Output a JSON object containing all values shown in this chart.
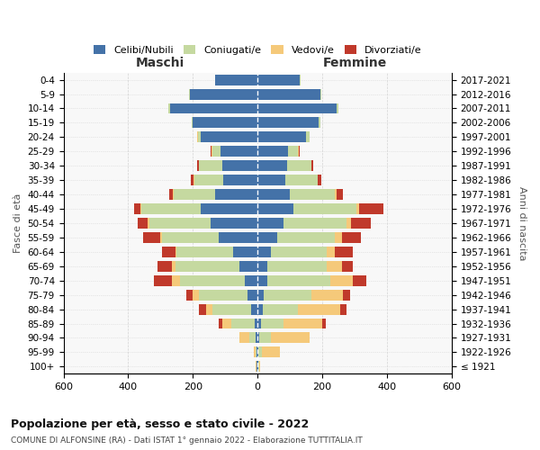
{
  "age_groups": [
    "100+",
    "95-99",
    "90-94",
    "85-89",
    "80-84",
    "75-79",
    "70-74",
    "65-69",
    "60-64",
    "55-59",
    "50-54",
    "45-49",
    "40-44",
    "35-39",
    "30-34",
    "25-29",
    "20-24",
    "15-19",
    "10-14",
    "5-9",
    "0-4"
  ],
  "birth_years": [
    "≤ 1921",
    "1922-1926",
    "1927-1931",
    "1932-1936",
    "1937-1941",
    "1942-1946",
    "1947-1951",
    "1952-1956",
    "1957-1961",
    "1962-1966",
    "1967-1971",
    "1972-1976",
    "1977-1981",
    "1982-1986",
    "1987-1991",
    "1992-1996",
    "1997-2001",
    "2002-2006",
    "2007-2011",
    "2012-2016",
    "2017-2021"
  ],
  "maschi": {
    "celibi": [
      2,
      2,
      5,
      10,
      20,
      30,
      40,
      55,
      75,
      120,
      145,
      175,
      130,
      105,
      110,
      115,
      175,
      200,
      270,
      210,
      130
    ],
    "coniugati": [
      2,
      5,
      20,
      70,
      120,
      150,
      200,
      200,
      175,
      175,
      190,
      185,
      130,
      90,
      70,
      25,
      10,
      5,
      5,
      2,
      2
    ],
    "vedovi": [
      2,
      5,
      30,
      30,
      20,
      20,
      25,
      10,
      5,
      5,
      5,
      3,
      2,
      2,
      2,
      2,
      2,
      0,
      0,
      0,
      0
    ],
    "divorziati": [
      0,
      0,
      0,
      10,
      20,
      20,
      55,
      45,
      40,
      55,
      30,
      20,
      10,
      10,
      5,
      2,
      0,
      0,
      0,
      0,
      0
    ]
  },
  "femmine": {
    "nubili": [
      2,
      3,
      5,
      10,
      15,
      20,
      30,
      30,
      40,
      60,
      80,
      110,
      100,
      85,
      90,
      95,
      150,
      190,
      245,
      195,
      130
    ],
    "coniugate": [
      2,
      10,
      35,
      70,
      110,
      145,
      195,
      185,
      175,
      180,
      195,
      195,
      140,
      100,
      75,
      30,
      10,
      5,
      5,
      2,
      2
    ],
    "vedove": [
      5,
      55,
      120,
      120,
      130,
      100,
      70,
      45,
      25,
      20,
      15,
      10,
      5,
      2,
      2,
      2,
      2,
      0,
      0,
      0,
      0
    ],
    "divorziate": [
      0,
      0,
      0,
      10,
      20,
      20,
      40,
      35,
      55,
      60,
      60,
      75,
      20,
      10,
      5,
      2,
      0,
      0,
      0,
      0,
      0
    ]
  },
  "colors": {
    "celibi": "#4472a8",
    "coniugati": "#c5d9a0",
    "vedovi": "#f5c97a",
    "divorziati": "#c0392b"
  },
  "xlim": 600,
  "title": "Popolazione per età, sesso e stato civile - 2022",
  "subtitle": "COMUNE DI ALFONSINE (RA) - Dati ISTAT 1° gennaio 2022 - Elaborazione TUTTITALIA.IT",
  "legend_labels": [
    "Celibi/Nubili",
    "Coniugati/e",
    "Vedovi/e",
    "Divorziati/e"
  ],
  "left_label": "Maschi",
  "right_label": "Femmine",
  "ylabel_left": "Fasce di età",
  "ylabel_right": "Anni di nascita"
}
